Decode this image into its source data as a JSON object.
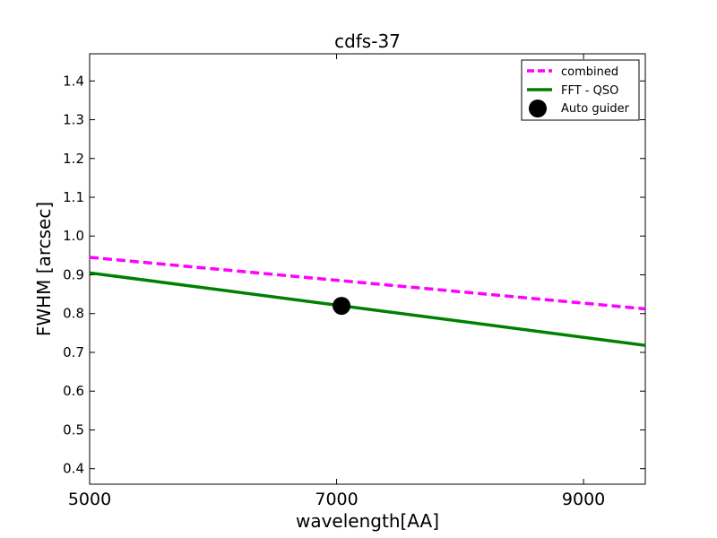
{
  "chart_data": {
    "type": "line",
    "title": "cdfs-37",
    "xlabel": "wavelength[AA]",
    "ylabel": "FWHM [arcsec]",
    "xlim": [
      5000,
      9500
    ],
    "ylim": [
      0.36,
      1.47
    ],
    "xticks": [
      5000,
      7000,
      9000
    ],
    "xtick_labels": [
      "5000",
      "7000",
      "9000"
    ],
    "yticks": [
      0.4,
      0.5,
      0.6,
      0.7,
      0.8,
      0.9,
      1.0,
      1.1,
      1.2,
      1.3,
      1.4
    ],
    "ytick_labels": [
      "0.4",
      "0.5",
      "0.6",
      "0.7",
      "0.8",
      "0.9",
      "1.0",
      "1.1",
      "1.2",
      "1.3",
      "1.4"
    ],
    "grid": false,
    "legend_position": "top-right",
    "series": [
      {
        "name": "combined",
        "style": "dashed",
        "color": "#ff00ff",
        "x": [
          5000,
          9500
        ],
        "y": [
          0.945,
          0.812
        ]
      },
      {
        "name": "FFT - QSO",
        "style": "solid",
        "color": "#008000",
        "x": [
          5000,
          9500
        ],
        "y": [
          0.905,
          0.718
        ]
      },
      {
        "name": "Auto guider",
        "style": "marker",
        "color": "#000000",
        "x": [
          7040
        ],
        "y": [
          0.82
        ]
      }
    ]
  }
}
